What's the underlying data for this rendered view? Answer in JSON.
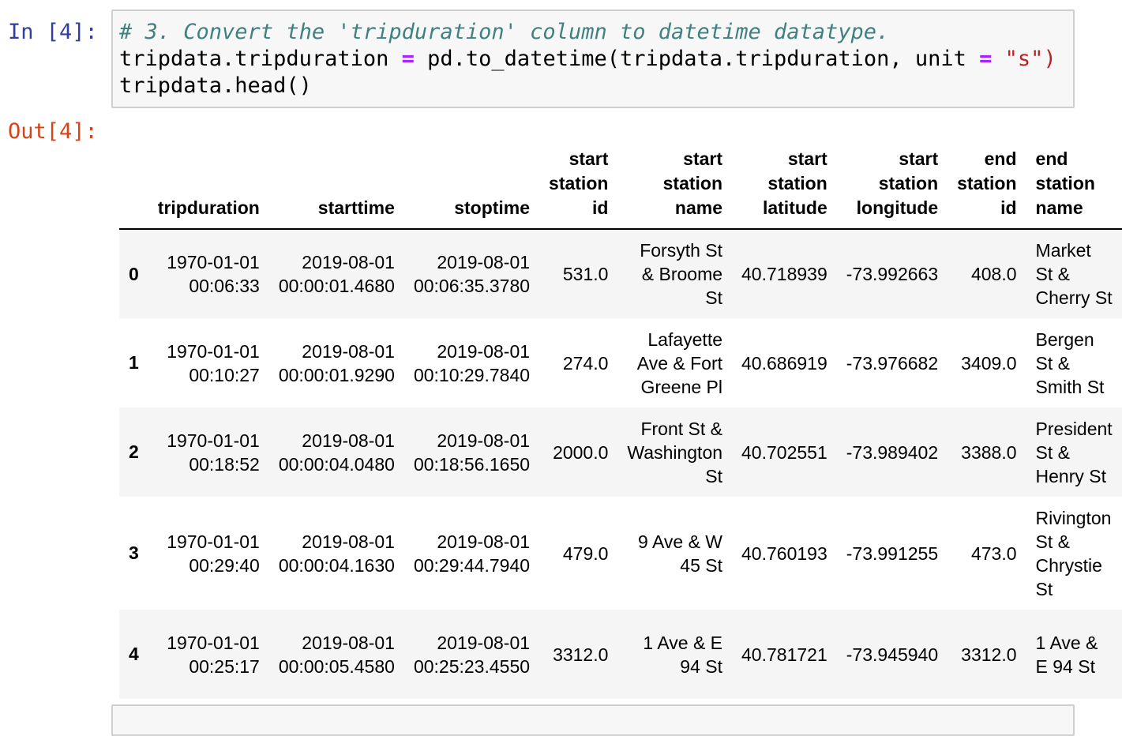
{
  "in_prompt": "In [4]:",
  "out_prompt": "Out[4]:",
  "code": {
    "comment": "# 3. Convert the 'tripduration' column to datetime datatype.",
    "line2_a": "tripdata.tripduration ",
    "line2_eq": "=",
    "line2_b": " pd.to_datetime(tripdata.tripduration, unit ",
    "line2_eq2": "=",
    "line2_str": "\"s\")",
    "line3": "tripdata.head()"
  },
  "table": {
    "columns": [
      "",
      "tripduration",
      "starttime",
      "stoptime",
      "start station id",
      "start station name",
      "start station latitude",
      "start station longitude",
      "end station id",
      "end station name"
    ],
    "rows": [
      {
        "idx": "0",
        "tripduration": "1970-01-01 00:06:33",
        "starttime": "2019-08-01 00:00:01.4680",
        "stoptime": "2019-08-01 00:06:35.3780",
        "start_station_id": "531.0",
        "start_station_name": "Forsyth St & Broome St",
        "start_lat": "40.718939",
        "start_lon": "-73.992663",
        "end_station_id": "408.0",
        "end_station_name": "Market St & Cherry St"
      },
      {
        "idx": "1",
        "tripduration": "1970-01-01 00:10:27",
        "starttime": "2019-08-01 00:00:01.9290",
        "stoptime": "2019-08-01 00:10:29.7840",
        "start_station_id": "274.0",
        "start_station_name": "Lafayette Ave & Fort Greene Pl",
        "start_lat": "40.686919",
        "start_lon": "-73.976682",
        "end_station_id": "3409.0",
        "end_station_name": "Bergen St & Smith St"
      },
      {
        "idx": "2",
        "tripduration": "1970-01-01 00:18:52",
        "starttime": "2019-08-01 00:00:04.0480",
        "stoptime": "2019-08-01 00:18:56.1650",
        "start_station_id": "2000.0",
        "start_station_name": "Front St & Washington St",
        "start_lat": "40.702551",
        "start_lon": "-73.989402",
        "end_station_id": "3388.0",
        "end_station_name": "President St & Henry St"
      },
      {
        "idx": "3",
        "tripduration": "1970-01-01 00:29:40",
        "starttime": "2019-08-01 00:00:04.1630",
        "stoptime": "2019-08-01 00:29:44.7940",
        "start_station_id": "479.0",
        "start_station_name": "9 Ave & W 45 St",
        "start_lat": "40.760193",
        "start_lon": "-73.991255",
        "end_station_id": "473.0",
        "end_station_name": "Rivington St & Chrystie St"
      },
      {
        "idx": "4",
        "tripduration": "1970-01-01 00:25:17",
        "starttime": "2019-08-01 00:00:05.4580",
        "stoptime": "2019-08-01 00:25:23.4550",
        "start_station_id": "3312.0",
        "start_station_name": "1 Ave & E 94 St",
        "start_lat": "40.781721",
        "start_lon": "-73.945940",
        "end_station_id": "3312.0",
        "end_station_name": "1 Ave & E 94 St"
      }
    ]
  }
}
